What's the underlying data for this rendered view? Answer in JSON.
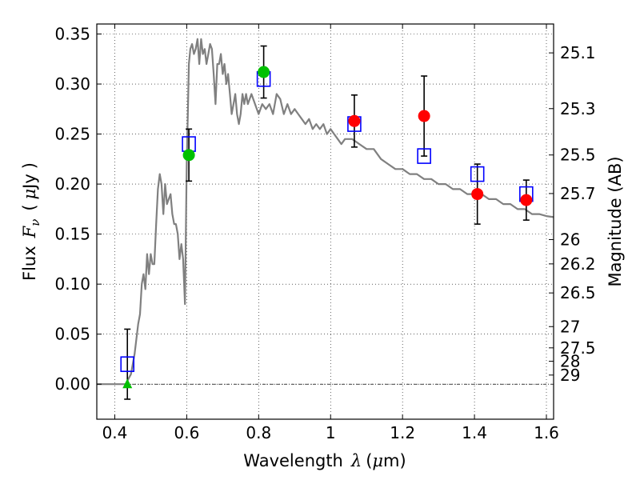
{
  "chart_data": {
    "type": "scatter",
    "xlabel": "Wavelength",
    "xlabel_symbol": "λ",
    "xlabel_unit_prefix": "(",
    "xlabel_unit_mu": "μ",
    "xlabel_unit_suffix": "m)",
    "ylabel_prefix": "Flux",
    "ylabel_symbol": "F",
    "ylabel_subscript": "ν",
    "ylabel_unit_open": "(",
    "ylabel_unit_mu": "μ",
    "ylabel_unit_text": "Jy",
    "ylabel_unit_close": ")",
    "ylabel_right": "Magnitude (AB)",
    "xlim": [
      0.35,
      1.62
    ],
    "ylim": [
      -0.035,
      0.36
    ],
    "grid": true,
    "x_ticks": [
      0.4,
      0.6,
      0.8,
      1.0,
      1.2,
      1.4,
      1.6
    ],
    "x_tick_labels": [
      "0.4",
      "0.6",
      "0.8",
      "1",
      "1.2",
      "1.4",
      "1.6"
    ],
    "y_ticks": [
      0.0,
      0.05,
      0.1,
      0.15,
      0.2,
      0.25,
      0.3,
      0.35
    ],
    "y_tick_labels": [
      "0.00",
      "0.05",
      "0.10",
      "0.15",
      "0.20",
      "0.25",
      "0.30",
      "0.35"
    ],
    "right_ticks": [
      {
        "label": "25.1",
        "mag": 25.1
      },
      {
        "label": "25.3",
        "mag": 25.3
      },
      {
        "label": "25.5",
        "mag": 25.5
      },
      {
        "label": "25.7",
        "mag": 25.7
      },
      {
        "label": "26",
        "mag": 26.0
      },
      {
        "label": "26.2",
        "mag": 26.2
      },
      {
        "label": "26.5",
        "mag": 26.5
      },
      {
        "label": "27",
        "mag": 27.0
      },
      {
        "label": "27.5",
        "mag": 27.5
      },
      {
        "label": "28",
        "mag": 28.0
      },
      {
        "label": "29",
        "mag": 29.0
      }
    ],
    "series": [
      {
        "kind": "line",
        "color": "#808080",
        "x": [
          0.35,
          0.43,
          0.445,
          0.455,
          0.465,
          0.47,
          0.475,
          0.48,
          0.485,
          0.49,
          0.495,
          0.5,
          0.505,
          0.51,
          0.515,
          0.52,
          0.525,
          0.53,
          0.535,
          0.54,
          0.545,
          0.55,
          0.555,
          0.56,
          0.565,
          0.57,
          0.575,
          0.58,
          0.585,
          0.59,
          0.595,
          0.6,
          0.603,
          0.606,
          0.61,
          0.615,
          0.62,
          0.625,
          0.63,
          0.635,
          0.64,
          0.645,
          0.65,
          0.655,
          0.66,
          0.665,
          0.67,
          0.675,
          0.68,
          0.685,
          0.69,
          0.695,
          0.7,
          0.705,
          0.71,
          0.715,
          0.72,
          0.725,
          0.73,
          0.735,
          0.74,
          0.745,
          0.75,
          0.755,
          0.76,
          0.765,
          0.77,
          0.78,
          0.79,
          0.8,
          0.81,
          0.82,
          0.83,
          0.84,
          0.85,
          0.86,
          0.87,
          0.88,
          0.89,
          0.9,
          0.91,
          0.92,
          0.93,
          0.94,
          0.95,
          0.96,
          0.97,
          0.98,
          0.99,
          1.0,
          1.01,
          1.02,
          1.03,
          1.04,
          1.06,
          1.08,
          1.1,
          1.12,
          1.14,
          1.16,
          1.18,
          1.2,
          1.22,
          1.24,
          1.26,
          1.28,
          1.3,
          1.32,
          1.34,
          1.36,
          1.38,
          1.4,
          1.42,
          1.44,
          1.46,
          1.48,
          1.5,
          1.52,
          1.54,
          1.56,
          1.58,
          1.6,
          1.62
        ],
        "y": [
          0.0,
          0.0,
          0.01,
          0.03,
          0.06,
          0.07,
          0.1,
          0.11,
          0.095,
          0.13,
          0.11,
          0.13,
          0.12,
          0.12,
          0.16,
          0.195,
          0.21,
          0.2,
          0.17,
          0.2,
          0.18,
          0.185,
          0.19,
          0.17,
          0.16,
          0.16,
          0.15,
          0.125,
          0.14,
          0.125,
          0.08,
          0.22,
          0.27,
          0.32,
          0.335,
          0.34,
          0.33,
          0.335,
          0.345,
          0.32,
          0.345,
          0.33,
          0.335,
          0.32,
          0.33,
          0.34,
          0.335,
          0.31,
          0.28,
          0.32,
          0.32,
          0.33,
          0.31,
          0.32,
          0.3,
          0.31,
          0.29,
          0.27,
          0.28,
          0.29,
          0.27,
          0.26,
          0.27,
          0.29,
          0.28,
          0.29,
          0.28,
          0.29,
          0.28,
          0.27,
          0.28,
          0.275,
          0.28,
          0.27,
          0.29,
          0.285,
          0.27,
          0.28,
          0.27,
          0.275,
          0.27,
          0.265,
          0.26,
          0.265,
          0.255,
          0.26,
          0.255,
          0.26,
          0.25,
          0.255,
          0.25,
          0.245,
          0.24,
          0.245,
          0.245,
          0.24,
          0.235,
          0.235,
          0.225,
          0.22,
          0.215,
          0.215,
          0.21,
          0.21,
          0.205,
          0.205,
          0.2,
          0.2,
          0.195,
          0.195,
          0.19,
          0.19,
          0.19,
          0.185,
          0.185,
          0.18,
          0.18,
          0.175,
          0.175,
          0.17,
          0.17,
          0.168,
          0.167
        ]
      },
      {
        "kind": "open-square",
        "color": "#0000ff",
        "points": [
          {
            "x": 0.435,
            "y": 0.02,
            "err": 0.035
          },
          {
            "x": 0.606,
            "y": 0.24,
            "err": null
          },
          {
            "x": 0.814,
            "y": 0.305,
            "err": null
          },
          {
            "x": 1.066,
            "y": 0.26,
            "err": null
          },
          {
            "x": 1.26,
            "y": 0.228,
            "err": null
          },
          {
            "x": 1.408,
            "y": 0.21,
            "err": null
          },
          {
            "x": 1.544,
            "y": 0.19,
            "err": null
          }
        ]
      },
      {
        "kind": "filled-circle",
        "color": "#00c000",
        "points": [
          {
            "x": 0.606,
            "y": 0.229,
            "err": 0.026
          },
          {
            "x": 0.814,
            "y": 0.312,
            "err": 0.026
          }
        ]
      },
      {
        "kind": "filled-circle",
        "color": "#ff0000",
        "points": [
          {
            "x": 1.066,
            "y": 0.263,
            "err": 0.026
          },
          {
            "x": 1.26,
            "y": 0.268,
            "err": 0.04
          },
          {
            "x": 1.408,
            "y": 0.19,
            "err": 0.03
          },
          {
            "x": 1.544,
            "y": 0.184,
            "err": 0.02
          }
        ]
      },
      {
        "kind": "triangle",
        "color": "#00c000",
        "points": [
          {
            "x": 0.435,
            "y": 0.0
          }
        ]
      }
    ]
  }
}
